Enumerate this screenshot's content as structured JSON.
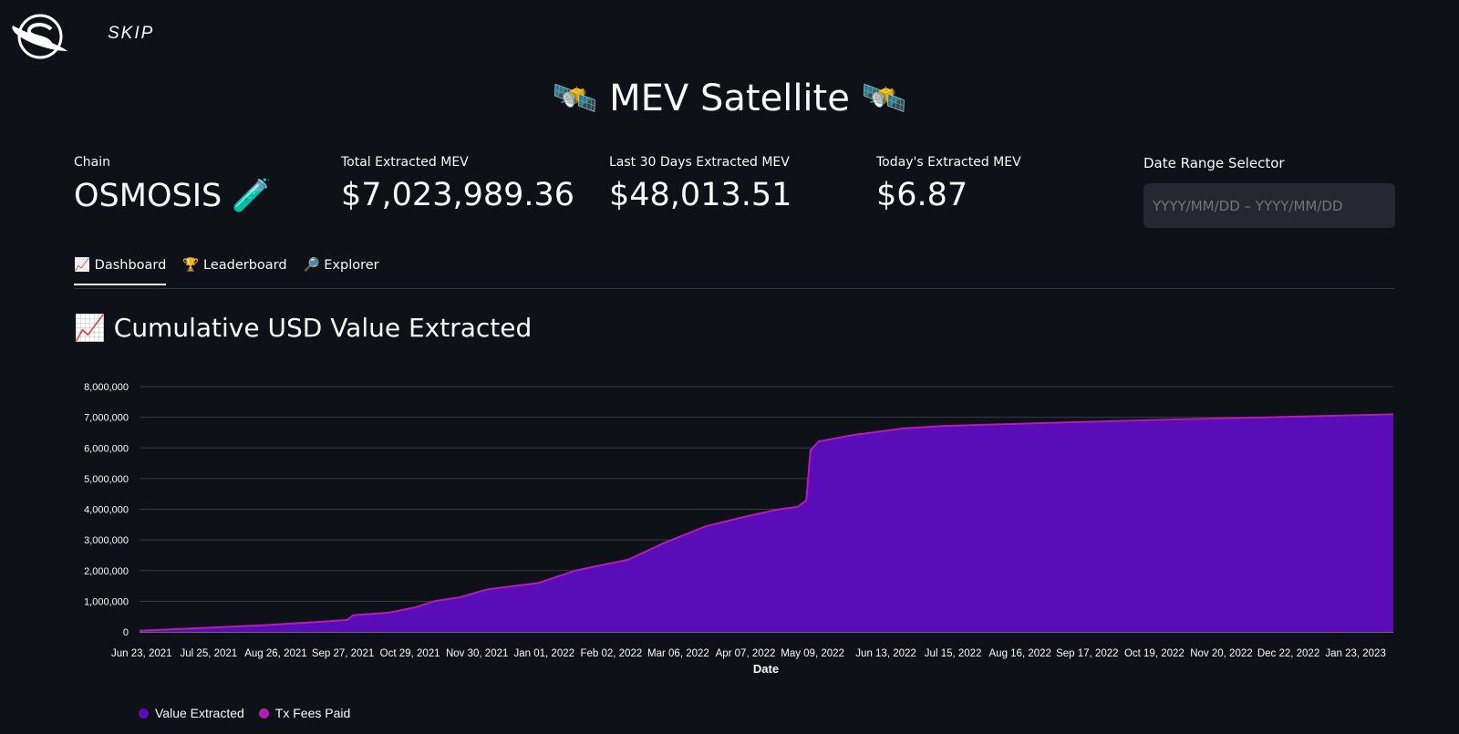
{
  "brand": {
    "name": "SKIP",
    "logo_icon": "skip-orbit-logo"
  },
  "header": {
    "title": "🛰️ MEV Satellite 🛰️"
  },
  "metrics": [
    {
      "label": "Chain",
      "value": "OSMOSIS 🧪"
    },
    {
      "label": "Total Extracted MEV",
      "value": "$7,023,989.36"
    },
    {
      "label": "Last 30 Days Extracted MEV",
      "value": "$48,013.51"
    },
    {
      "label": "Today's Extracted MEV",
      "value": "$6.87"
    }
  ],
  "date_range": {
    "label": "Date Range Selector",
    "placeholder": "YYYY/MM/DD – YYYY/MM/DD",
    "value": ""
  },
  "tabs": [
    {
      "label": "📈 Dashboard",
      "active": true
    },
    {
      "label": "🏆 Leaderboard",
      "active": false
    },
    {
      "label": "🔎 Explorer",
      "active": false
    }
  ],
  "section_title": "📈 Cumulative USD Value Extracted",
  "colors": {
    "background": "#0e1117",
    "value_extracted": "#5a0cb8",
    "tx_fees_paid": "#b11fb0",
    "grid": "#3a3b42"
  },
  "chart_data": {
    "type": "area",
    "xlabel": "Date",
    "ylabel": "",
    "ylim": [
      0,
      8000000
    ],
    "yticks": [
      0,
      1000000,
      2000000,
      3000000,
      4000000,
      5000000,
      6000000,
      7000000,
      8000000
    ],
    "ytick_labels": [
      "0",
      "1,000,000",
      "2,000,000",
      "3,000,000",
      "4,000,000",
      "5,000,000",
      "6,000,000",
      "7,000,000",
      "8,000,000"
    ],
    "xticks": [
      "2021-06-23",
      "2021-07-25",
      "2021-08-26",
      "2021-09-27",
      "2021-10-29",
      "2021-11-30",
      "2022-01-01",
      "2022-02-02",
      "2022-03-06",
      "2022-04-07",
      "2022-05-09",
      "2022-06-13",
      "2022-07-15",
      "2022-08-16",
      "2022-09-17",
      "2022-10-19",
      "2022-11-20",
      "2022-12-22",
      "2023-01-23"
    ],
    "xtick_labels": [
      "Jun 23, 2021",
      "Jul 25, 2021",
      "Aug 26, 2021",
      "Sep 27, 2021",
      "Oct 29, 2021",
      "Nov 30, 2021",
      "Jan 01, 2022",
      "Feb 02, 2022",
      "Mar 06, 2022",
      "Apr 07, 2022",
      "May 09, 2022",
      "Jun 13, 2022",
      "Jul 15, 2022",
      "Aug 16, 2022",
      "Sep 17, 2022",
      "Oct 19, 2022",
      "Nov 20, 2022",
      "Dec 22, 2022",
      "Jan 23, 2023"
    ],
    "grid": true,
    "legend_position": "bottom-left",
    "series": [
      {
        "name": "Value Extracted",
        "x": [
          "2021-06-22",
          "2021-08-20",
          "2021-09-29",
          "2021-10-02",
          "2021-10-19",
          "2021-11-01",
          "2021-11-10",
          "2021-11-22",
          "2021-12-05",
          "2021-12-29",
          "2022-01-16",
          "2022-02-10",
          "2022-02-27",
          "2022-03-19",
          "2022-04-06",
          "2022-04-22",
          "2022-05-02",
          "2022-05-06",
          "2022-05-08",
          "2022-05-12",
          "2022-05-28",
          "2022-06-21",
          "2022-07-11",
          "2022-10-17",
          "2023-02-10"
        ],
        "y": [
          20000,
          200000,
          370000,
          530000,
          610000,
          790000,
          990000,
          1110000,
          1370000,
          1570000,
          1980000,
          2330000,
          2870000,
          3420000,
          3720000,
          3960000,
          4060000,
          4260000,
          5900000,
          6190000,
          6390000,
          6610000,
          6690000,
          6880000,
          7060000
        ]
      },
      {
        "name": "Tx Fees Paid",
        "x": [
          "2021-06-22",
          "2022-05-12",
          "2022-10-17",
          "2023-02-10"
        ],
        "y": [
          0,
          10000,
          15000,
          20000
        ]
      }
    ]
  }
}
